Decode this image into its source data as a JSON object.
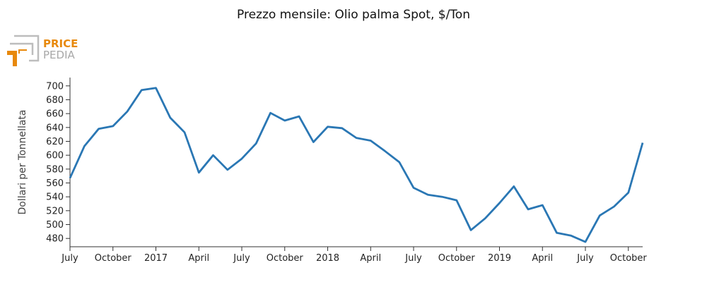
{
  "title": "Prezzo mensile: Olio palma Spot, $/Ton",
  "logo": {
    "line1": "PRICE",
    "line2": "PEDIA",
    "color": "#e8890c",
    "frame_color": "#bdbdbd"
  },
  "chart_data": {
    "type": "line",
    "title": "Prezzo mensile: Olio palma Spot, $/Ton",
    "xlabel": "",
    "ylabel": "Dollari per Tonnellata",
    "x": [
      "2016-07",
      "2016-08",
      "2016-09",
      "2016-10",
      "2016-11",
      "2016-12",
      "2017-01",
      "2017-02",
      "2017-03",
      "2017-04",
      "2017-05",
      "2017-06",
      "2017-07",
      "2017-08",
      "2017-09",
      "2017-10",
      "2017-11",
      "2017-12",
      "2018-01",
      "2018-02",
      "2018-03",
      "2018-04",
      "2018-05",
      "2018-06",
      "2018-07",
      "2018-08",
      "2018-09",
      "2018-10",
      "2018-11",
      "2018-12",
      "2019-01",
      "2019-02",
      "2019-03",
      "2019-04",
      "2019-05",
      "2019-06",
      "2019-07",
      "2019-08",
      "2019-09",
      "2019-10",
      "2019-11"
    ],
    "series": [
      {
        "values": [
          567,
          613,
          638,
          642,
          663,
          694,
          697,
          654,
          633,
          575,
          600,
          579,
          595,
          617,
          661,
          650,
          656,
          619,
          641,
          639,
          625,
          621,
          606,
          590,
          553,
          543,
          540,
          535,
          492,
          509,
          531,
          555,
          522,
          528,
          488,
          484,
          475,
          513,
          526,
          546,
          618
        ],
        "color": "#2a77b4"
      }
    ],
    "ylim": [
      468,
      712
    ],
    "yticks": [
      480,
      500,
      520,
      540,
      560,
      580,
      600,
      620,
      640,
      660,
      680,
      700
    ],
    "xticks": [
      {
        "x": "2016-07",
        "label": "July"
      },
      {
        "x": "2016-10",
        "label": "October"
      },
      {
        "x": "2017-01",
        "label": "2017"
      },
      {
        "x": "2017-04",
        "label": "April"
      },
      {
        "x": "2017-07",
        "label": "July"
      },
      {
        "x": "2017-10",
        "label": "October"
      },
      {
        "x": "2018-01",
        "label": "2018"
      },
      {
        "x": "2018-04",
        "label": "April"
      },
      {
        "x": "2018-07",
        "label": "July"
      },
      {
        "x": "2018-10",
        "label": "October"
      },
      {
        "x": "2019-01",
        "label": "2019"
      },
      {
        "x": "2019-04",
        "label": "April"
      },
      {
        "x": "2019-07",
        "label": "July"
      },
      {
        "x": "2019-10",
        "label": "October"
      }
    ],
    "grid": false,
    "legend": "none"
  }
}
